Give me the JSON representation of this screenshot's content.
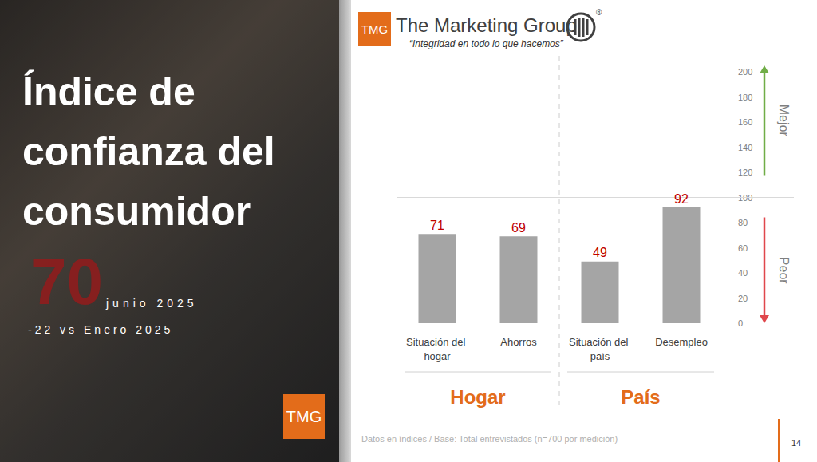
{
  "slide": {
    "title": "Índice de confianza del consumidor",
    "index_value": 70,
    "period": "junio 2025",
    "comparison": "-22 vs Enero 2025",
    "badge": "TMG",
    "logo": {
      "mark": "TMG",
      "name": "The Marketing Group",
      "registered": "®",
      "tagline": "“Integridad en todo lo que hacemos”"
    },
    "footnote": "Datos en índices / Base: Total entrevistados (n=700 por medición)",
    "page": 14
  },
  "chart_data": {
    "type": "bar",
    "categories": [
      "Situación del hogar",
      "Ahorros",
      "Situación del país",
      "Desempleo"
    ],
    "values": [
      71,
      69,
      49,
      92
    ],
    "color": "#a5a5a5",
    "ylim": [
      0,
      200
    ],
    "yticks": [
      0,
      20,
      40,
      60,
      80,
      100,
      120,
      140,
      160,
      180,
      200
    ],
    "grid": false,
    "data_labels": true,
    "reference_line": 100,
    "groups": [
      {
        "label": "Hogar",
        "categories": [
          "Situación del hogar",
          "Ahorros"
        ]
      },
      {
        "label": "País",
        "categories": [
          "Situación del país",
          "Desempleo"
        ]
      }
    ],
    "annotations": [
      {
        "text": "Mejor",
        "direction": "up",
        "color": "#70ad47"
      },
      {
        "text": "Peor",
        "direction": "down",
        "color": "#e0474c"
      }
    ]
  }
}
